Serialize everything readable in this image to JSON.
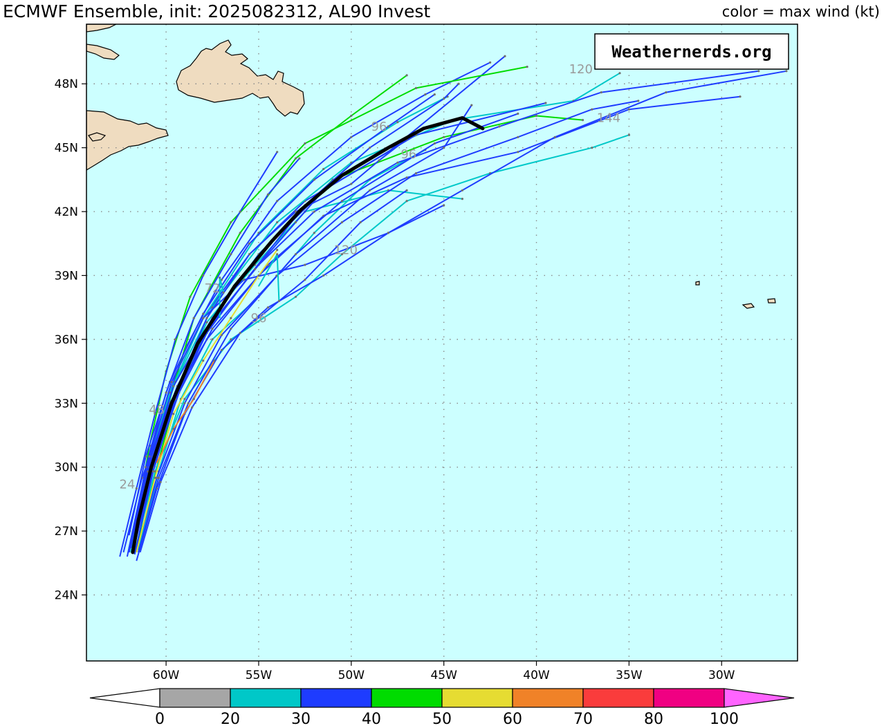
{
  "title": "ECMWF Ensemble, init: 2025082312, AL90 Invest",
  "subtitle": "color = max wind (kt)",
  "watermark": "Weathernerds.org",
  "colors": {
    "ocean": "#ccffff",
    "land": "#efdcc0",
    "mean_track": "#000000",
    "grid": "#8a8a8a"
  },
  "chart_data": {
    "type": "line",
    "xlim": [
      -64.3,
      -25.9
    ],
    "ylim": [
      20.9,
      50.8
    ],
    "grid": true,
    "x_ticks": [
      {
        "value": -60,
        "label": "60W"
      },
      {
        "value": -55,
        "label": "55W"
      },
      {
        "value": -50,
        "label": "50W"
      },
      {
        "value": -45,
        "label": "45W"
      },
      {
        "value": -40,
        "label": "40W"
      },
      {
        "value": -35,
        "label": "35W"
      },
      {
        "value": -30,
        "label": "30W"
      }
    ],
    "y_ticks": [
      {
        "value": 24,
        "label": "24N"
      },
      {
        "value": 27,
        "label": "27N"
      },
      {
        "value": 30,
        "label": "30N"
      },
      {
        "value": 33,
        "label": "33N"
      },
      {
        "value": 36,
        "label": "36N"
      },
      {
        "value": 39,
        "label": "39N"
      },
      {
        "value": 42,
        "label": "42N"
      },
      {
        "value": 45,
        "label": "45N"
      },
      {
        "value": 48,
        "label": "48N"
      }
    ],
    "colorbar": {
      "bins": [
        {
          "min": 0,
          "max": 20,
          "color": "#a6a6a6"
        },
        {
          "min": 20,
          "max": 30,
          "color": "#00c8c8"
        },
        {
          "min": 30,
          "max": 40,
          "color": "#1e3cff"
        },
        {
          "min": 40,
          "max": 50,
          "color": "#00dc00"
        },
        {
          "min": 50,
          "max": 60,
          "color": "#e6dc32"
        },
        {
          "min": 60,
          "max": 70,
          "color": "#f08228"
        },
        {
          "min": 70,
          "max": 80,
          "color": "#fa3c3c"
        },
        {
          "min": 80,
          "max": 100,
          "color": "#f00082"
        }
      ],
      "labels": [
        "0",
        "20",
        "30",
        "40",
        "50",
        "60",
        "70",
        "80",
        "100"
      ],
      "under_color": "#ffffff",
      "over_color": "#ff64ff"
    },
    "ensemble_members": [
      {
        "color": "#1e3cff",
        "points": [
          [
            -62.1,
            25.8
          ],
          [
            -61.2,
            29.5
          ],
          [
            -59.8,
            33.5
          ],
          [
            -58.0,
            37.0
          ],
          [
            -55.5,
            40.0
          ],
          [
            -52.5,
            42.5
          ],
          [
            -48.0,
            44.8
          ],
          [
            -41.7,
            49.3
          ]
        ]
      },
      {
        "color": "#1e3cff",
        "points": [
          [
            -62.0,
            26.2
          ],
          [
            -60.8,
            31.0
          ],
          [
            -59.0,
            35.5
          ],
          [
            -57.0,
            38.8
          ],
          [
            -54.0,
            42.5
          ],
          [
            -50.0,
            45.5
          ],
          [
            -46.0,
            47.5
          ],
          [
            -42.5,
            49.0
          ]
        ]
      },
      {
        "color": "#00dc00",
        "points": [
          [
            -61.6,
            26.0
          ],
          [
            -60.6,
            30.5
          ],
          [
            -59.6,
            33.8
          ],
          [
            -58.5,
            37.0
          ],
          [
            -56.0,
            41.0
          ],
          [
            -53.0,
            44.5
          ],
          [
            -50.0,
            46.5
          ],
          [
            -47.0,
            48.4
          ]
        ]
      },
      {
        "color": "#00dc00",
        "points": [
          [
            -61.8,
            26.5
          ],
          [
            -60.9,
            31.0
          ],
          [
            -60.0,
            34.5
          ],
          [
            -58.7,
            38.0
          ],
          [
            -56.5,
            41.5
          ],
          [
            -52.5,
            45.2
          ],
          [
            -46.5,
            47.8
          ],
          [
            -40.5,
            48.8
          ]
        ]
      },
      {
        "color": "#00dc00",
        "points": [
          [
            -61.5,
            26.2
          ],
          [
            -60.5,
            30.0
          ],
          [
            -59.3,
            33.8
          ],
          [
            -57.5,
            37.0
          ],
          [
            -55.0,
            40.0
          ],
          [
            -51.0,
            43.5
          ],
          [
            -45.0,
            45.5
          ],
          [
            -40.0,
            46.5
          ],
          [
            -37.5,
            46.3
          ]
        ]
      },
      {
        "color": "#00c8c8",
        "points": [
          [
            -61.9,
            26.0
          ],
          [
            -61.0,
            30.0
          ],
          [
            -59.8,
            33.5
          ],
          [
            -58.0,
            37.0
          ],
          [
            -55.0,
            41.0
          ],
          [
            -51.5,
            44.0
          ],
          [
            -47.5,
            46.2
          ],
          [
            -44.8,
            47.4
          ]
        ]
      },
      {
        "color": "#00c8c8",
        "points": [
          [
            -61.7,
            26.3
          ],
          [
            -60.8,
            30.5
          ],
          [
            -59.5,
            34.0
          ],
          [
            -57.5,
            37.5
          ],
          [
            -54.0,
            41.5
          ],
          [
            -50.0,
            44.3
          ],
          [
            -44.5,
            46.3
          ],
          [
            -38.0,
            47.2
          ],
          [
            -35.5,
            48.5
          ]
        ]
      },
      {
        "color": "#00c8c8",
        "points": [
          [
            -61.5,
            26.1
          ],
          [
            -60.4,
            29.8
          ],
          [
            -59.2,
            33.2
          ],
          [
            -57.5,
            36.0
          ],
          [
            -55.0,
            38.0
          ],
          [
            -52.0,
            41.0
          ],
          [
            -49.0,
            43.5
          ],
          [
            -46.0,
            44.9
          ]
        ]
      },
      {
        "color": "#00c8c8",
        "points": [
          [
            -61.8,
            26.4
          ],
          [
            -60.7,
            30.3
          ],
          [
            -59.5,
            33.5
          ],
          [
            -57.8,
            36.8
          ],
          [
            -55.2,
            39.5
          ],
          [
            -52.5,
            42.0
          ],
          [
            -48.0,
            43.0
          ],
          [
            -44.0,
            42.6
          ]
        ]
      },
      {
        "color": "#00c8c8",
        "points": [
          [
            -61.7,
            26.0
          ],
          [
            -60.6,
            29.8
          ],
          [
            -59.0,
            33.2
          ],
          [
            -56.5,
            36.0
          ],
          [
            -53.0,
            38.0
          ],
          [
            -50.5,
            40.0
          ],
          [
            -47.0,
            42.5
          ],
          [
            -42.5,
            43.8
          ],
          [
            -37.0,
            45.0
          ],
          [
            -35.0,
            45.6
          ]
        ]
      },
      {
        "color": "#1e3cff",
        "points": [
          [
            -62.3,
            26.0
          ],
          [
            -61.3,
            29.5
          ],
          [
            -59.8,
            33.0
          ],
          [
            -57.8,
            36.0
          ],
          [
            -55.0,
            39.0
          ],
          [
            -51.5,
            41.8
          ],
          [
            -47.0,
            43.6
          ],
          [
            -41.0,
            44.8
          ],
          [
            -35.0,
            46.8
          ],
          [
            -29.0,
            47.4
          ]
        ]
      },
      {
        "color": "#1e3cff",
        "points": [
          [
            -61.9,
            26.5
          ],
          [
            -60.8,
            30.5
          ],
          [
            -59.4,
            33.8
          ],
          [
            -57.5,
            36.8
          ],
          [
            -55.0,
            39.5
          ],
          [
            -52.0,
            42.0
          ],
          [
            -47.5,
            44.3
          ],
          [
            -42.0,
            46.0
          ],
          [
            -36.5,
            47.6
          ],
          [
            -28.0,
            48.6
          ]
        ]
      },
      {
        "color": "#1e3cff",
        "points": [
          [
            -61.6,
            25.6
          ],
          [
            -60.5,
            29.0
          ],
          [
            -59.0,
            32.5
          ],
          [
            -57.0,
            35.5
          ],
          [
            -54.5,
            37.5
          ],
          [
            -51.5,
            39.0
          ],
          [
            -48.0,
            41.0
          ],
          [
            -44.0,
            43.0
          ],
          [
            -39.0,
            45.5
          ],
          [
            -33.0,
            47.6
          ],
          [
            -26.5,
            48.6
          ]
        ]
      },
      {
        "color": "#1e3cff",
        "points": [
          [
            -62.0,
            26.0
          ],
          [
            -61.0,
            30.0
          ],
          [
            -59.6,
            33.8
          ],
          [
            -57.5,
            37.0
          ],
          [
            -55.0,
            40.0
          ],
          [
            -51.5,
            43.0
          ],
          [
            -46.5,
            45.6
          ],
          [
            -39.5,
            47.1
          ]
        ]
      },
      {
        "color": "#1e3cff",
        "points": [
          [
            -61.8,
            26.2
          ],
          [
            -60.7,
            30.0
          ],
          [
            -59.3,
            33.5
          ],
          [
            -57.5,
            36.5
          ],
          [
            -54.5,
            39.5
          ],
          [
            -50.5,
            42.5
          ],
          [
            -45.5,
            45.2
          ],
          [
            -41.0,
            46.6
          ]
        ]
      },
      {
        "color": "#1e3cff",
        "points": [
          [
            -62.0,
            26.8
          ],
          [
            -61.1,
            30.5
          ],
          [
            -59.8,
            34.0
          ],
          [
            -58.0,
            37.2
          ],
          [
            -55.5,
            40.5
          ],
          [
            -52.0,
            43.5
          ],
          [
            -48.0,
            46.0
          ],
          [
            -45.5,
            47.5
          ]
        ]
      },
      {
        "color": "#1e3cff",
        "points": [
          [
            -61.5,
            26.0
          ],
          [
            -60.4,
            29.5
          ],
          [
            -58.8,
            33.0
          ],
          [
            -56.5,
            36.5
          ],
          [
            -53.0,
            40.0
          ],
          [
            -49.0,
            43.0
          ],
          [
            -45.0,
            45.0
          ],
          [
            -43.5,
            47.0
          ]
        ]
      },
      {
        "color": "#1e3cff",
        "points": [
          [
            -61.7,
            25.9
          ],
          [
            -60.7,
            29.8
          ],
          [
            -59.5,
            33.3
          ],
          [
            -57.8,
            36.3
          ],
          [
            -55.5,
            39.0
          ],
          [
            -52.5,
            42.3
          ],
          [
            -49.0,
            45.0
          ],
          [
            -45.0,
            47.3
          ],
          [
            -44.2,
            48.0
          ]
        ]
      },
      {
        "color": "#1e3cff",
        "points": [
          [
            -61.6,
            26.1
          ],
          [
            -60.5,
            29.5
          ],
          [
            -59.0,
            33.0
          ],
          [
            -57.0,
            36.2
          ],
          [
            -54.0,
            39.0
          ],
          [
            -50.5,
            41.5
          ],
          [
            -46.5,
            43.8
          ],
          [
            -41.0,
            45.5
          ],
          [
            -37.0,
            46.8
          ],
          [
            -34.5,
            47.2
          ]
        ]
      },
      {
        "color": "#1e3cff",
        "points": [
          [
            -62.0,
            26.0
          ],
          [
            -61.0,
            29.8
          ],
          [
            -59.5,
            33.5
          ],
          [
            -57.8,
            37.0
          ],
          [
            -55.5,
            40.0
          ],
          [
            -53.0,
            42.0
          ],
          [
            -50.0,
            43.3
          ],
          [
            -48.5,
            44.4
          ],
          [
            -47.0,
            45.4
          ]
        ]
      },
      {
        "color": "#1e3cff",
        "points": [
          [
            -61.9,
            26.2
          ],
          [
            -61.1,
            30.0
          ],
          [
            -60.0,
            33.5
          ],
          [
            -58.5,
            37.0
          ],
          [
            -56.5,
            40.0
          ],
          [
            -54.5,
            42.8
          ],
          [
            -52.8,
            44.5
          ]
        ]
      },
      {
        "color": "#1e3cff",
        "points": [
          [
            -61.4,
            26.0
          ],
          [
            -60.3,
            29.3
          ],
          [
            -58.6,
            32.8
          ],
          [
            -56.0,
            36.3
          ],
          [
            -52.5,
            38.8
          ],
          [
            -49.5,
            41.5
          ],
          [
            -47.0,
            43.0
          ]
        ]
      },
      {
        "color": "#1e3cff",
        "points": [
          [
            -62.5,
            25.8
          ],
          [
            -61.6,
            29.0
          ],
          [
            -60.6,
            32.5
          ],
          [
            -59.5,
            36.0
          ],
          [
            -58.0,
            39.0
          ],
          [
            -56.0,
            42.0
          ],
          [
            -54.0,
            44.8
          ]
        ]
      },
      {
        "color": "#1e3cff",
        "points": [
          [
            -61.9,
            26.4
          ],
          [
            -60.9,
            30.5
          ],
          [
            -59.7,
            34.0
          ],
          [
            -58.0,
            37.0
          ],
          [
            -55.8,
            38.8
          ],
          [
            -52.5,
            39.5
          ],
          [
            -48.0,
            41.0
          ],
          [
            -45.0,
            42.3
          ]
        ]
      },
      {
        "color": "#1e3cff",
        "points": [
          [
            -61.8,
            26.0
          ],
          [
            -60.7,
            29.8
          ],
          [
            -59.5,
            33.2
          ],
          [
            -57.7,
            36.5
          ],
          [
            -55.2,
            39.3
          ],
          [
            -53.0,
            41.5
          ],
          [
            -51.5,
            43.0
          ]
        ]
      },
      {
        "color": "#e6dc32",
        "points": [
          [
            -61.6,
            26.0
          ],
          [
            -60.6,
            29.5
          ],
          [
            -59.6,
            32.5
          ],
          [
            -58.0,
            35.0
          ],
          [
            -56.5,
            37.0
          ],
          [
            -55.0,
            39.0
          ],
          [
            -54.0,
            40.2
          ]
        ]
      },
      {
        "color": "#f08228",
        "points": [
          [
            -60.5,
            30.2
          ],
          [
            -59.6,
            31.8
          ],
          [
            -58.5,
            33.2
          ],
          [
            -57.4,
            35.0
          ]
        ]
      },
      {
        "color": "#00c8c8",
        "points": [
          [
            -57.1,
            37.0
          ],
          [
            -57.1,
            38.9
          ],
          [
            -56.9,
            38.2
          ]
        ]
      },
      {
        "color": "#00c8c8",
        "points": [
          [
            -55.0,
            38.5
          ],
          [
            -54.0,
            40.0
          ],
          [
            -53.9,
            37.8
          ]
        ]
      }
    ],
    "mean_track": [
      [
        -61.8,
        26.0
      ],
      [
        -61.5,
        27.5
      ],
      [
        -60.8,
        30.0
      ],
      [
        -59.7,
        33.0
      ],
      [
        -58.3,
        35.8
      ],
      [
        -56.3,
        38.5
      ],
      [
        -54.3,
        40.6
      ],
      [
        -52.7,
        42.1
      ],
      [
        -50.5,
        43.7
      ],
      [
        -48.0,
        45.0
      ],
      [
        -46.1,
        45.9
      ],
      [
        -44.0,
        46.4
      ],
      [
        -42.9,
        45.9
      ]
    ],
    "lead_time_labels": [
      {
        "label": "24",
        "lon": -62.1,
        "lat": 29.0
      },
      {
        "label": "48",
        "lon": -60.5,
        "lat": 32.5
      },
      {
        "label": "72",
        "lon": -57.5,
        "lat": 38.2
      },
      {
        "label": "96",
        "lon": -55.0,
        "lat": 36.8
      },
      {
        "label": "96",
        "lon": -46.9,
        "lat": 44.5
      },
      {
        "label": "96",
        "lon": -48.5,
        "lat": 45.8
      },
      {
        "label": "120",
        "lon": -50.3,
        "lat": 40.0
      },
      {
        "label": "120",
        "lon": -37.6,
        "lat": 48.5
      },
      {
        "label": "144",
        "lon": -36.1,
        "lat": 46.2
      }
    ]
  }
}
